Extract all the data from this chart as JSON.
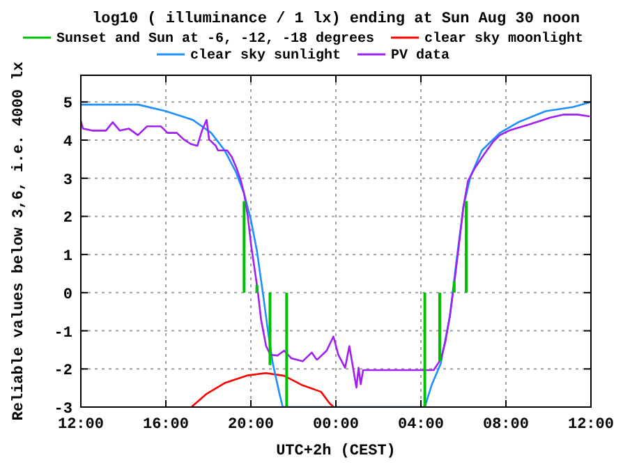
{
  "chart_data": {
    "type": "line",
    "title": "log10 ( illuminance / 1 lx) ending at Sun Aug 30 noon",
    "xlabel": "UTC+2h (CEST)",
    "ylabel": "Reliable values below 3,6, i.e. 4000 lx",
    "xlim": [
      "--08-29T12:00",
      "--08-30T12:00"
    ],
    "ylim": [
      -3,
      5.7
    ],
    "xticks": [
      {
        "value": "--08-29T12:00",
        "label": "12:00"
      },
      {
        "value": "--08-29T16:00",
        "label": "16:00"
      },
      {
        "value": "--08-29T20:00",
        "label": "20:00"
      },
      {
        "value": "--08-30T00:00",
        "label": "00:00"
      },
      {
        "value": "--08-30T04:00",
        "label": "04:00"
      },
      {
        "value": "--08-30T08:00",
        "label": "08:00"
      },
      {
        "value": "--08-30T12:00",
        "label": "12:00"
      }
    ],
    "yticks": [
      -3,
      -2,
      -1,
      0,
      1,
      2,
      3,
      4,
      5
    ],
    "grid": true,
    "legend": "top",
    "line_style": "solid",
    "marker": "none",
    "series": [
      {
        "name": "Sunset and Sun at -6, -12, -18 degrees",
        "type": "bar",
        "color": "#00c000",
        "x": [
          "--08-29T19:41",
          "--08-29T20:17",
          "--08-29T20:54",
          "--08-29T21:41",
          "--08-30T04:11",
          "--08-30T04:53",
          "--08-30T05:34",
          "--08-30T06:08"
        ],
        "values": [
          2.4,
          0.2,
          -1.9,
          -3,
          -3,
          -1.8,
          0.3,
          2.4
        ]
      },
      {
        "name": "clear sky moonlight",
        "color": "#ff0000",
        "x": [
          "--08-29T17:12",
          "--08-29T17:54",
          "--08-29T18:46",
          "--08-29T19:51",
          "--08-29T20:42",
          "--08-29T21:34",
          "--08-29T22:26",
          "--08-29T23:18",
          "--08-29T23:42",
          "--08-29T23:54"
        ],
        "values": [
          -3,
          -2.66,
          -2.37,
          -2.17,
          -2.11,
          -2.18,
          -2.43,
          -2.6,
          -2.9,
          -3
        ]
      },
      {
        "name": "clear sky sunlight",
        "color": "#1e8fff",
        "x": [
          "--08-29T12:00",
          "--08-29T14:42",
          "--08-29T16:00",
          "--08-29T17:16",
          "--08-29T18:08",
          "--08-29T18:46",
          "--08-29T19:18",
          "--08-29T19:41",
          "--08-29T20:00",
          "--08-29T20:17",
          "--08-29T20:36",
          "--08-29T20:49",
          "--08-29T21:02",
          "--08-29T21:21",
          "--08-29T21:30",
          "--08-30T04:11",
          "--08-30T04:30",
          "--08-30T04:56",
          "--08-30T05:22",
          "--08-30T05:41",
          "--08-30T06:00",
          "--08-30T06:20",
          "--08-30T06:52",
          "--08-30T07:43",
          "--08-30T08:35",
          "--08-30T09:52",
          "--08-30T11:10",
          "--08-30T11:57"
        ],
        "values": [
          4.93,
          4.93,
          4.76,
          4.53,
          4.19,
          3.73,
          3.16,
          2.59,
          1.91,
          1.1,
          -0.15,
          -1.06,
          -1.86,
          -2.66,
          -3,
          -3,
          -2.43,
          -1.86,
          -0.6,
          0.88,
          2.25,
          3.05,
          3.73,
          4.19,
          4.47,
          4.76,
          4.87,
          4.99
        ]
      },
      {
        "name": "PV data",
        "color": "#a020f0",
        "x": [
          "--08-29T12:00",
          "--08-29T12:06",
          "--08-29T12:32",
          "--08-29T13:11",
          "--08-29T13:30",
          "--08-29T13:50",
          "--08-29T14:16",
          "--08-29T14:41",
          "--08-29T15:07",
          "--08-29T15:46",
          "--08-29T16:05",
          "--08-29T16:31",
          "--08-29T16:50",
          "--08-29T17:10",
          "--08-29T17:29",
          "--08-29T17:42",
          "--08-29T17:55",
          "--08-29T18:02",
          "--08-29T18:21",
          "--08-29T18:27",
          "--08-29T18:53",
          "--08-29T19:06",
          "--08-29T19:19",
          "--08-29T19:32",
          "--08-29T19:41",
          "--08-29T19:51",
          "--08-29T20:01",
          "--08-29T20:10",
          "--08-29T20:19",
          "--08-29T20:29",
          "--08-29T20:43",
          "--08-29T20:55",
          "--08-29T21:15",
          "--08-29T21:34",
          "--08-29T21:54",
          "--08-29T22:26",
          "--08-29T22:52",
          "--08-29T23:05",
          "--08-29T23:08",
          "--08-29T23:34",
          "--08-29T23:53",
          "--08-30T00:07",
          "--08-30T00:26",
          "--08-30T00:38",
          "--08-30T00:58",
          "--08-30T01:04",
          "--08-30T01:10",
          "--08-30T01:17",
          "--08-30T04:05",
          "--08-30T04:36",
          "--08-30T04:56",
          "--08-30T05:09",
          "--08-30T05:22",
          "--08-30T05:35",
          "--08-30T05:47",
          "--08-30T06:00",
          "--08-30T06:13",
          "--08-30T06:33",
          "--08-30T06:58",
          "--08-30T07:24",
          "--08-30T07:43",
          "--08-30T08:09",
          "--08-30T08:48",
          "--08-30T09:26",
          "--08-30T10:05",
          "--08-30T10:44",
          "--08-30T11:22",
          "--08-30T11:57"
        ],
        "values": [
          4.5,
          4.3,
          4.25,
          4.25,
          4.47,
          4.25,
          4.3,
          4.13,
          4.36,
          4.36,
          4.19,
          4.19,
          4.02,
          3.9,
          3.85,
          4.25,
          4.53,
          4.02,
          3.85,
          3.73,
          3.73,
          3.56,
          3.28,
          2.93,
          2.59,
          2.02,
          1.22,
          0.65,
          0.08,
          -0.72,
          -1.4,
          -1.63,
          -1.65,
          -1.52,
          -1.72,
          -1.8,
          -1.57,
          -1.75,
          -1.75,
          -1.52,
          -1.15,
          -1.63,
          -1.97,
          -1.4,
          -2.49,
          -1.97,
          -2.4,
          -2.03,
          -2.03,
          -2.03,
          -1.75,
          -1.29,
          -0.6,
          0.31,
          1.22,
          2.25,
          2.93,
          3.28,
          3.62,
          3.96,
          4.13,
          4.25,
          4.36,
          4.47,
          4.59,
          4.67,
          4.67,
          4.62
        ]
      }
    ]
  }
}
